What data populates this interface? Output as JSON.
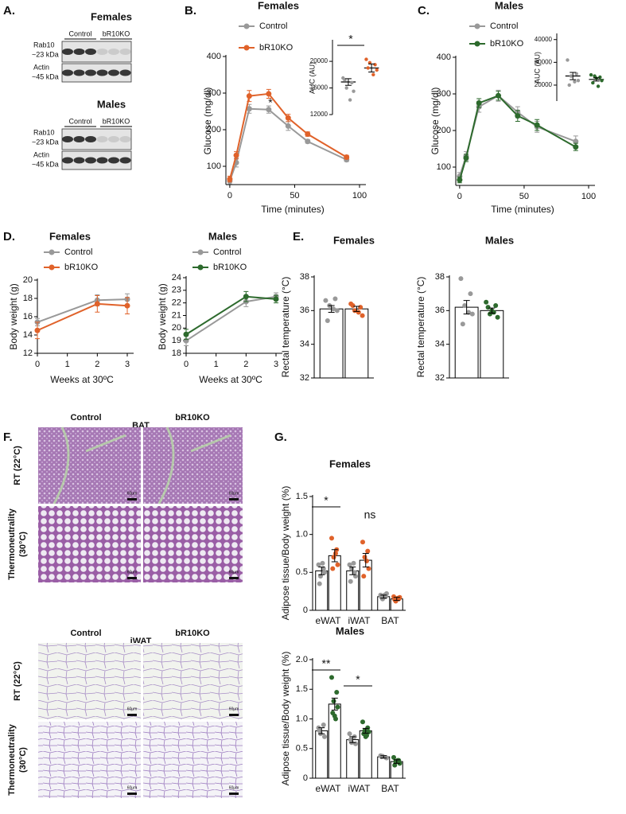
{
  "panel_labels": [
    "A.",
    "B.",
    "C.",
    "D.",
    "E.",
    "F.",
    "G."
  ],
  "blots": [
    {
      "title": "Females",
      "title_color": "#e0622a",
      "groups": [
        "Control",
        "bR10KO"
      ],
      "rows": [
        {
          "protein": "Rab10",
          "size": "~23 kDa"
        },
        {
          "protein": "Actin",
          "size": "~45 kDa"
        }
      ]
    },
    {
      "title": "Males",
      "title_color": "#2d6a2d",
      "groups": [
        "Control",
        "bR10KO"
      ],
      "rows": [
        {
          "protein": "Rab10",
          "size": "~23 kDa"
        },
        {
          "protein": "Actin",
          "size": "~45 kDa"
        }
      ]
    }
  ],
  "histology": {
    "sections": [
      {
        "tissue": "BAT",
        "groups": [
          "Control",
          "bR10KO"
        ],
        "conditions": [
          [
            "RT (22°C)"
          ],
          [
            "Thermoneutrality",
            "(30°C)"
          ]
        ],
        "scale_bar": "60μm"
      },
      {
        "tissue": "iWAT",
        "groups": [
          "Control",
          "bR10KO"
        ],
        "conditions": [
          [
            "RT (22°C)"
          ],
          [
            "Thermoneutrality",
            "(30°C)"
          ]
        ],
        "scale_bar": "60μm"
      }
    ]
  },
  "chart_data": [
    {
      "type": "line",
      "title": "Females",
      "title_color": "#e0622a",
      "xlabel": "Time (minutes)",
      "ylabel": "Glucose (mg/dl)",
      "x": [
        0,
        5,
        15,
        30,
        45,
        60,
        90
      ],
      "xlim": [
        -3,
        100
      ],
      "xticks": [
        0,
        50,
        100
      ],
      "ylim": [
        50,
        400
      ],
      "yticks": [
        100,
        200,
        300,
        400
      ],
      "legend": "upper left",
      "series": [
        {
          "name": "Control",
          "color": "#999999",
          "values": [
            60,
            110,
            257,
            255,
            210,
            168,
            118
          ],
          "errors": [
            8,
            12,
            12,
            10,
            12,
            5,
            5
          ]
        },
        {
          "name": "bR10KO",
          "color": "#e0622a",
          "values": [
            65,
            130,
            292,
            298,
            232,
            188,
            125
          ],
          "errors": [
            8,
            10,
            15,
            12,
            10,
            6,
            5
          ]
        }
      ],
      "annotations": [
        "*"
      ]
    },
    {
      "type": "dot",
      "ylabel": "AUC (AU)",
      "categories": [
        null
      ],
      "ylim": [
        12000,
        23000
      ],
      "yticks": [
        12000,
        16000,
        20000
      ],
      "series": [
        {
          "color": "#999999",
          "values": [
            16900
          ],
          "errors": [
            500
          ],
          "points": [
            [
              17500,
              16800,
              16000,
              15500,
              17200,
              14200
            ]
          ]
        },
        {
          "color": "#e0622a",
          "values": [
            19000
          ],
          "errors": [
            600
          ],
          "points": [
            [
              20300,
              19500,
              19800,
              18700,
              19000,
              18000
            ]
          ]
        }
      ],
      "annotations": [
        "*"
      ]
    },
    {
      "type": "line",
      "title": "Males",
      "title_color": "#2d6a2d",
      "xlabel": "Time (minutes)",
      "ylabel": "Glucose (mg/dl)",
      "x": [
        0,
        5,
        15,
        30,
        45,
        60,
        90
      ],
      "xlim": [
        -3,
        100
      ],
      "xticks": [
        0,
        50,
        100
      ],
      "ylim": [
        50,
        400
      ],
      "yticks": [
        100,
        200,
        300,
        400
      ],
      "legend": "upper left",
      "series": [
        {
          "name": "Control",
          "color": "#999999",
          "values": [
            75,
            130,
            265,
            295,
            250,
            210,
            170
          ],
          "errors": [
            10,
            12,
            15,
            15,
            15,
            15,
            15
          ]
        },
        {
          "name": "bR10KO",
          "color": "#2d6a2d",
          "values": [
            65,
            125,
            275,
            295,
            240,
            215,
            155
          ],
          "errors": [
            8,
            10,
            12,
            12,
            15,
            15,
            10
          ]
        }
      ]
    },
    {
      "type": "dot",
      "ylabel": "AUC (AU)",
      "categories": [
        null
      ],
      "ylim": [
        13000,
        42000
      ],
      "yticks": [
        20000,
        30000,
        40000
      ],
      "series": [
        {
          "color": "#999999",
          "values": [
            24000
          ],
          "errors": [
            1600
          ],
          "points": [
            [
              31000,
              25000,
              24000,
              22000,
              20000,
              21500
            ]
          ]
        },
        {
          "color": "#2d6a2d",
          "values": [
            22500
          ],
          "errors": [
            700
          ],
          "points": [
            [
              24500,
              23500,
              24000,
              22000,
              21000,
              19500,
              23000
            ]
          ]
        }
      ]
    },
    {
      "type": "line",
      "title": "Females",
      "title_color": "#e0622a",
      "xlabel": "Weeks at 30ºC",
      "ylabel": "Body weight (g)",
      "x": [
        0,
        2,
        3
      ],
      "xlim": [
        0,
        3
      ],
      "xticks": [
        0,
        1,
        2,
        3
      ],
      "ylim": [
        12,
        20
      ],
      "yticks": [
        12,
        14,
        16,
        18,
        20
      ],
      "legend": "upper left",
      "series": [
        {
          "name": "Control",
          "color": "#999999",
          "values": [
            15.4,
            17.8,
            17.9
          ],
          "errors": [
            0.4,
            0.6,
            0.6
          ]
        },
        {
          "name": "bR10KO",
          "color": "#e0622a",
          "values": [
            14.5,
            17.4,
            17.2
          ],
          "errors": [
            0.9,
            0.9,
            0.9
          ]
        }
      ]
    },
    {
      "type": "line",
      "title": "Males",
      "title_color": "#2d6a2d",
      "xlabel": "Weeks at 30ºC",
      "ylabel": "Body weight (g)",
      "x": [
        0,
        2,
        3
      ],
      "xlim": [
        0,
        3
      ],
      "xticks": [
        0,
        1,
        2,
        3
      ],
      "ylim": [
        18,
        24
      ],
      "yticks": [
        18,
        19,
        20,
        21,
        22,
        23,
        24
      ],
      "legend": "upper left",
      "series": [
        {
          "name": "Control",
          "color": "#999999",
          "values": [
            19.0,
            22.1,
            22.5
          ],
          "errors": [
            0.4,
            0.4,
            0.3
          ]
        },
        {
          "name": "bR10KO",
          "color": "#2d6a2d",
          "values": [
            19.5,
            22.5,
            22.3
          ],
          "errors": [
            0.4,
            0.4,
            0.3
          ]
        }
      ]
    },
    {
      "type": "bar",
      "title": "Females",
      "title_color": "#e0622a",
      "ylabel": "Rectal temperature (°C)",
      "categories": [
        null
      ],
      "ylim": [
        32,
        38
      ],
      "yticks": [
        32,
        34,
        36,
        38
      ],
      "series": [
        {
          "color": "#999999",
          "values": [
            36.1
          ],
          "errors": [
            0.2
          ],
          "points": [
            [
              36.6,
              36.7,
              36.3,
              36.0,
              35.4,
              36.1
            ]
          ]
        },
        {
          "color": "#e0622a",
          "values": [
            36.1
          ],
          "errors": [
            0.15
          ],
          "points": [
            [
              36.4,
              36.2,
              36.0,
              35.7,
              36.3,
              35.9
            ]
          ]
        }
      ]
    },
    {
      "type": "bar",
      "title": "Males",
      "title_color": "#2d6a2d",
      "ylabel": "Rectal temperature (°C)",
      "categories": [
        null
      ],
      "ylim": [
        32,
        38
      ],
      "yticks": [
        32,
        34,
        36,
        38
      ],
      "series": [
        {
          "color": "#999999",
          "values": [
            36.2
          ],
          "errors": [
            0.4
          ],
          "points": [
            [
              37.9,
              37.0,
              36.3,
              35.8,
              35.2,
              35.9
            ]
          ]
        },
        {
          "color": "#2d6a2d",
          "values": [
            36.0
          ],
          "errors": [
            0.15
          ],
          "points": [
            [
              36.5,
              36.3,
              35.8,
              35.6,
              36.2,
              35.9,
              36.0
            ]
          ]
        }
      ]
    },
    {
      "type": "bar",
      "title": "Females",
      "title_color": "#e0622a",
      "ylabel": "Adipose tissue/Body weight (%)",
      "categories": [
        "eWAT",
        "iWAT",
        "BAT"
      ],
      "ylim": [
        0,
        1.5
      ],
      "yticks": [
        0,
        0.5,
        {
          "value": 1,
          "label": "1.0"
        },
        1.5
      ],
      "series": [
        {
          "color": "#999999",
          "values": [
            0.52,
            0.52,
            0.18
          ],
          "errors": [
            0.05,
            0.05,
            0.02
          ],
          "points": [
            [
              0.6,
              0.55,
              0.45,
              0.5,
              0.35,
              0.62
            ],
            [
              0.6,
              0.5,
              0.55,
              0.45,
              0.38,
              0.62
            ],
            [
              0.2,
              0.18,
              0.15,
              0.22,
              0.17,
              0.2
            ]
          ]
        },
        {
          "color": "#e0622a",
          "values": [
            0.72,
            0.66,
            0.15
          ],
          "errors": [
            0.08,
            0.09,
            0.02
          ],
          "points": [
            [
              0.95,
              0.8,
              0.7,
              0.6,
              0.55,
              0.75
            ],
            [
              0.9,
              0.78,
              0.7,
              0.55,
              0.45,
              0.65
            ],
            [
              0.18,
              0.15,
              0.12,
              0.17,
              0.14,
              0.16
            ]
          ]
        }
      ],
      "annotations": [
        "*",
        "ns"
      ]
    },
    {
      "type": "bar",
      "title": "Males",
      "title_color": "#2d6a2d",
      "ylabel": "Adipose tissue/Body weight (%)",
      "categories": [
        "eWAT",
        "iWAT",
        "BAT"
      ],
      "ylim": [
        0,
        2
      ],
      "yticks": [
        0,
        0.5,
        {
          "value": 1,
          "label": "1.0"
        },
        1.5,
        {
          "value": 2,
          "label": "2.0"
        }
      ],
      "series": [
        {
          "color": "#999999",
          "values": [
            0.8,
            0.65,
            0.36
          ],
          "errors": [
            0.05,
            0.05,
            0.02
          ],
          "points": [
            [
              0.85,
              0.9,
              0.75,
              0.7,
              0.8
            ],
            [
              0.75,
              0.7,
              0.6,
              0.58,
              0.65
            ],
            [
              0.38,
              0.35,
              0.37,
              0.34,
              0.36
            ]
          ]
        },
        {
          "color": "#2d6a2d",
          "values": [
            1.25,
            0.8,
            0.28
          ],
          "errors": [
            0.1,
            0.04,
            0.03
          ],
          "points": [
            [
              1.7,
              1.45,
              1.3,
              1.2,
              1.1,
              1.0,
              1.05
            ],
            [
              0.95,
              0.85,
              0.8,
              0.78,
              0.75,
              0.72,
              0.7
            ],
            [
              0.35,
              0.3,
              0.28,
              0.25,
              0.22,
              0.3
            ]
          ]
        }
      ],
      "annotations": [
        "**",
        "*"
      ]
    }
  ]
}
